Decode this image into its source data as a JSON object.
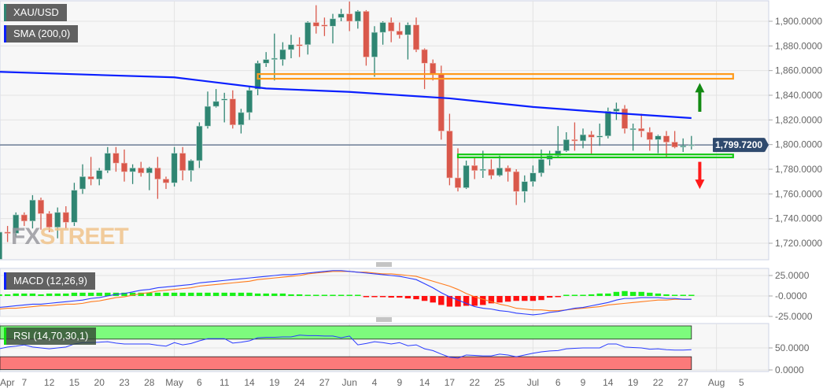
{
  "symbol_label": "XAU/USD",
  "sma_label": "SMA (200,0)",
  "macd_label": "MACD (12,26,9)",
  "rsi_label": "RSI (14,70,30,1)",
  "watermark": {
    "fx": "FX",
    "street": "STREET"
  },
  "colors": {
    "up": "#2f8572",
    "down": "#d9584b",
    "sma": "#0a1fff",
    "macd": "#2a3cff",
    "signal": "#ff7b1c",
    "hist_up": "#19f019",
    "hist_down": "#ff1010",
    "resistance_zone": "#ff9a1a",
    "support_zone": "#12c812",
    "arrow_up": "#138a13",
    "arrow_down": "#ff1a1a",
    "price_line": "#2f4a6e",
    "overbought": "#7dfb7d",
    "oversold": "#fb7a7a"
  },
  "chart_data": {
    "type": "candlestick",
    "price_axis": {
      "ylim": [
        1706,
        1917
      ],
      "ticks": [
        "1,720.0000",
        "1,740.0000",
        "1,760.0000",
        "1,780.0000",
        "1,800.0000",
        "1,820.0000",
        "1,840.0000",
        "1,860.0000",
        "1,880.0000",
        "1,900.0000"
      ],
      "tick_values": [
        1720,
        1740,
        1760,
        1780,
        1800,
        1820,
        1840,
        1860,
        1880,
        1900
      ]
    },
    "current_price": {
      "value": 1799.72,
      "label": "1,799.7200"
    },
    "x_ticks": [
      {
        "label": "Apr",
        "date": "04-01"
      },
      {
        "label": "7",
        "date": "04-07"
      },
      {
        "label": "12",
        "date": "04-12"
      },
      {
        "label": "15",
        "date": "04-15"
      },
      {
        "label": "20",
        "date": "04-20"
      },
      {
        "label": "23",
        "date": "04-23"
      },
      {
        "label": "28",
        "date": "04-28"
      },
      {
        "label": "May",
        "date": "05-03"
      },
      {
        "label": "6",
        "date": "05-06"
      },
      {
        "label": "11",
        "date": "05-11"
      },
      {
        "label": "14",
        "date": "05-14"
      },
      {
        "label": "19",
        "date": "05-19"
      },
      {
        "label": "24",
        "date": "05-24"
      },
      {
        "label": "27",
        "date": "05-27"
      },
      {
        "label": "Jun",
        "date": "06-01"
      },
      {
        "label": "4",
        "date": "06-04"
      },
      {
        "label": "9",
        "date": "06-09"
      },
      {
        "label": "14",
        "date": "06-14"
      },
      {
        "label": "17",
        "date": "06-17"
      },
      {
        "label": "22",
        "date": "06-22"
      },
      {
        "label": "25",
        "date": "06-25"
      },
      {
        "label": "Jul",
        "date": "07-01"
      },
      {
        "label": "6",
        "date": "07-06"
      },
      {
        "label": "9",
        "date": "07-09"
      },
      {
        "label": "14",
        "date": "07-14"
      },
      {
        "label": "19",
        "date": "07-19"
      },
      {
        "label": "22",
        "date": "07-22"
      },
      {
        "label": "27",
        "date": "07-27"
      },
      {
        "label": "Aug",
        "date": "08-02"
      },
      {
        "label": "5",
        "date": "08-05"
      }
    ],
    "month_grid": [
      "05-03",
      "06-01",
      "07-01",
      "08-02"
    ],
    "candles_columns": [
      "date",
      "open",
      "high",
      "low",
      "close"
    ],
    "candles": [
      [
        "04-01",
        1707,
        1732,
        1705,
        1729
      ],
      [
        "04-05",
        1729,
        1734,
        1721,
        1728
      ],
      [
        "04-06",
        1728,
        1745,
        1725,
        1743
      ],
      [
        "04-07",
        1743,
        1745,
        1734,
        1738
      ],
      [
        "04-08",
        1738,
        1759,
        1732,
        1755
      ],
      [
        "04-09",
        1755,
        1757,
        1731,
        1744
      ],
      [
        "04-12",
        1744,
        1746,
        1729,
        1733
      ],
      [
        "04-13",
        1733,
        1749,
        1724,
        1745
      ],
      [
        "04-14",
        1745,
        1750,
        1732,
        1737
      ],
      [
        "04-15",
        1737,
        1769,
        1734,
        1763
      ],
      [
        "04-16",
        1764,
        1784,
        1760,
        1774
      ],
      [
        "04-19",
        1774,
        1790,
        1767,
        1772
      ],
      [
        "04-20",
        1772,
        1781,
        1767,
        1779
      ],
      [
        "04-21",
        1779,
        1798,
        1777,
        1793
      ],
      [
        "04-22",
        1793,
        1798,
        1778,
        1785
      ],
      [
        "04-23",
        1785,
        1796,
        1770,
        1778
      ],
      [
        "04-26",
        1778,
        1784,
        1768,
        1781
      ],
      [
        "04-27",
        1781,
        1786,
        1774,
        1777
      ],
      [
        "04-28",
        1777,
        1782,
        1763,
        1781
      ],
      [
        "04-29",
        1781,
        1790,
        1756,
        1772
      ],
      [
        "04-30",
        1772,
        1774,
        1764,
        1769
      ],
      [
        "05-03",
        1769,
        1798,
        1766,
        1793
      ],
      [
        "05-04",
        1793,
        1798,
        1771,
        1779
      ],
      [
        "05-05",
        1779,
        1788,
        1770,
        1787
      ],
      [
        "05-06",
        1787,
        1818,
        1781,
        1815
      ],
      [
        "05-07",
        1815,
        1843,
        1813,
        1831
      ],
      [
        "05-10",
        1831,
        1845,
        1830,
        1835
      ],
      [
        "05-11",
        1836,
        1842,
        1818,
        1837
      ],
      [
        "05-12",
        1837,
        1844,
        1813,
        1816
      ],
      [
        "05-13",
        1816,
        1829,
        1809,
        1826
      ],
      [
        "05-14",
        1826,
        1847,
        1820,
        1844
      ],
      [
        "05-17",
        1845,
        1868,
        1840,
        1866
      ],
      [
        "05-18",
        1866,
        1875,
        1863,
        1869
      ],
      [
        "05-19",
        1869,
        1890,
        1852,
        1870
      ],
      [
        "05-20",
        1869,
        1883,
        1864,
        1877
      ],
      [
        "05-21",
        1877,
        1889,
        1870,
        1881
      ],
      [
        "05-24",
        1881,
        1887,
        1871,
        1880
      ],
      [
        "05-25",
        1881,
        1900,
        1873,
        1899
      ],
      [
        "05-26",
        1899,
        1913,
        1890,
        1896
      ],
      [
        "05-27",
        1897,
        1903,
        1888,
        1896
      ],
      [
        "05-28",
        1896,
        1906,
        1882,
        1902
      ],
      [
        "05-31",
        1903,
        1910,
        1900,
        1906
      ],
      [
        "06-01",
        1906,
        1916,
        1892,
        1900
      ],
      [
        "06-02",
        1900,
        1909,
        1894,
        1908
      ],
      [
        "06-03",
        1908,
        1909,
        1864,
        1871
      ],
      [
        "06-04",
        1871,
        1896,
        1855,
        1891
      ],
      [
        "06-07",
        1891,
        1900,
        1881,
        1899
      ],
      [
        "06-08",
        1899,
        1903,
        1883,
        1892
      ],
      [
        "06-09",
        1892,
        1899,
        1886,
        1889
      ],
      [
        "06-10",
        1889,
        1899,
        1869,
        1897
      ],
      [
        "06-11",
        1897,
        1903,
        1875,
        1877
      ],
      [
        "06-14",
        1877,
        1878,
        1845,
        1866
      ],
      [
        "06-15",
        1866,
        1869,
        1852,
        1857
      ],
      [
        "06-16",
        1857,
        1864,
        1804,
        1811
      ],
      [
        "06-17",
        1811,
        1825,
        1767,
        1773
      ],
      [
        "06-18",
        1773,
        1797,
        1762,
        1765
      ],
      [
        "06-21",
        1765,
        1787,
        1764,
        1783
      ],
      [
        "06-22",
        1783,
        1789,
        1772,
        1779
      ],
      [
        "06-23",
        1779,
        1795,
        1773,
        1780
      ],
      [
        "06-24",
        1780,
        1788,
        1772,
        1775
      ],
      [
        "06-25",
        1775,
        1791,
        1774,
        1781
      ],
      [
        "06-28",
        1781,
        1783,
        1770,
        1778
      ],
      [
        "06-29",
        1778,
        1780,
        1751,
        1762
      ],
      [
        "06-30",
        1762,
        1775,
        1753,
        1770
      ],
      [
        "07-01",
        1770,
        1783,
        1766,
        1777
      ],
      [
        "07-02",
        1777,
        1796,
        1774,
        1788
      ],
      [
        "07-05",
        1788,
        1795,
        1783,
        1791
      ],
      [
        "07-06",
        1791,
        1815,
        1790,
        1795
      ],
      [
        "07-07",
        1795,
        1810,
        1794,
        1804
      ],
      [
        "07-08",
        1804,
        1818,
        1795,
        1803
      ],
      [
        "07-09",
        1803,
        1813,
        1797,
        1808
      ],
      [
        "07-12",
        1808,
        1811,
        1792,
        1806
      ],
      [
        "07-13",
        1806,
        1817,
        1799,
        1807
      ],
      [
        "07-14",
        1807,
        1830,
        1805,
        1827
      ],
      [
        "07-15",
        1827,
        1834,
        1820,
        1829
      ],
      [
        "07-16",
        1829,
        1832,
        1809,
        1813
      ],
      [
        "07-19",
        1812,
        1817,
        1795,
        1813
      ],
      [
        "07-20",
        1813,
        1825,
        1806,
        1811
      ],
      [
        "07-21",
        1810,
        1814,
        1795,
        1804
      ],
      [
        "07-22",
        1804,
        1808,
        1793,
        1807
      ],
      [
        "07-23",
        1807,
        1811,
        1790,
        1802
      ],
      [
        "07-26",
        1802,
        1811,
        1797,
        1798
      ],
      [
        "07-27",
        1798,
        1805,
        1794,
        1799
      ],
      [
        "07-28",
        1799,
        1807,
        1796,
        1799.72
      ]
    ],
    "sma200": [
      [
        "04-01",
        1859
      ],
      [
        "05-03",
        1854.5
      ],
      [
        "05-18",
        1845.5
      ],
      [
        "06-01",
        1842.7
      ],
      [
        "06-17",
        1837.5
      ],
      [
        "07-01",
        1830.5
      ],
      [
        "07-15",
        1825.5
      ],
      [
        "07-28",
        1821.5
      ]
    ],
    "zones": [
      {
        "name": "resistance",
        "from": "05-17",
        "to": "08-04",
        "low": 1853.4,
        "high": 1857.2
      },
      {
        "name": "support",
        "from": "06-18",
        "to": "08-04",
        "low": 1789.6,
        "high": 1792
      }
    ],
    "arrows": [
      {
        "direction": "up",
        "date": "07-29",
        "from": 1826.6,
        "to": 1850
      },
      {
        "direction": "down",
        "date": "07-29",
        "from": 1786,
        "to": 1764
      }
    ],
    "macd": {
      "ylim": [
        -26,
        33
      ],
      "ticks": [
        "25.0000",
        "-0.0000",
        "-25.0000"
      ],
      "tick_values": [
        25,
        0,
        -25
      ],
      "macd": [
        -14,
        -13,
        -12,
        -11,
        -10,
        -10,
        -9,
        -8,
        -7,
        -6,
        -5,
        -3,
        -2,
        0,
        2,
        3,
        5,
        7,
        8,
        10,
        11,
        12,
        13,
        14,
        16,
        17,
        18,
        19,
        20,
        21,
        22,
        23,
        24,
        25,
        26,
        26,
        27,
        28,
        29,
        30,
        31,
        31,
        30,
        29,
        28,
        27,
        26,
        25,
        24,
        22,
        20,
        15,
        10,
        4,
        -1,
        -5,
        -9,
        -13,
        -15,
        -16,
        -18,
        -19,
        -21,
        -22,
        -23,
        -22,
        -20,
        -19,
        -17,
        -15,
        -14,
        -12,
        -10,
        -8,
        -5,
        -3,
        -3,
        -2,
        -2,
        -2,
        -3,
        -3,
        -4,
        -4
      ],
      "signal": [
        -16,
        -15,
        -15,
        -14,
        -13,
        -12,
        -12,
        -11,
        -10,
        -10,
        -9,
        -7,
        -6,
        -4,
        -2,
        -1,
        1,
        3,
        4,
        6,
        7,
        8,
        9,
        10,
        12,
        13,
        14,
        15,
        16,
        17,
        18,
        20,
        21,
        22,
        23,
        24,
        25,
        27,
        28,
        29,
        30,
        30,
        30,
        29,
        29,
        28,
        27,
        27,
        26,
        25,
        24,
        21,
        18,
        15,
        12,
        8,
        3,
        -1,
        -4,
        -7,
        -10,
        -12,
        -15,
        -16,
        -17,
        -17,
        -18,
        -18,
        -17,
        -16,
        -15,
        -14,
        -13,
        -11,
        -10,
        -9,
        -8,
        -7,
        -6,
        -5,
        -5,
        -4,
        -4,
        -4
      ],
      "histogram": [
        2,
        2,
        3,
        3,
        3,
        2,
        3,
        3,
        3,
        4,
        4,
        4,
        4,
        4,
        4,
        4,
        4,
        4,
        4,
        4,
        4,
        4,
        4,
        4,
        4,
        4,
        4,
        4,
        4,
        4,
        4,
        3,
        3,
        3,
        3,
        2,
        2,
        1,
        1,
        1,
        1,
        1,
        0,
        0,
        -1,
        -1,
        -1,
        -2,
        -2,
        -3,
        -4,
        -6,
        -8,
        -11,
        -13,
        -13,
        -12,
        -12,
        -11,
        -9,
        -8,
        -7,
        -6,
        -6,
        -6,
        -5,
        -2,
        -1,
        0,
        1,
        1,
        2,
        3,
        3,
        5,
        6,
        5,
        5,
        4,
        3,
        2,
        1,
        0,
        0
      ]
    },
    "rsi": {
      "ylim": [
        0,
        100
      ],
      "overbought": 70,
      "oversold": 30,
      "ticks": [
        "50.0000",
        "0.0000"
      ],
      "tick_values": [
        50,
        0
      ],
      "values": [
        48,
        52,
        54,
        57,
        52,
        50,
        48,
        50,
        52,
        59,
        62,
        62,
        63,
        64,
        61,
        59,
        59,
        59,
        59,
        56,
        54,
        62,
        57,
        60,
        66,
        71,
        71,
        71,
        61,
        63,
        66,
        73,
        74,
        74,
        75,
        75,
        79,
        78,
        78,
        77,
        77,
        73,
        77,
        57,
        60,
        64,
        62,
        59,
        62,
        55,
        57,
        48,
        44,
        36,
        29,
        27,
        34,
        33,
        32,
        32,
        36,
        34,
        30,
        34,
        38,
        41,
        43,
        44,
        48,
        49,
        50,
        50,
        50,
        59,
        59,
        52,
        51,
        50,
        47,
        48,
        46,
        45,
        45,
        46
      ]
    }
  }
}
